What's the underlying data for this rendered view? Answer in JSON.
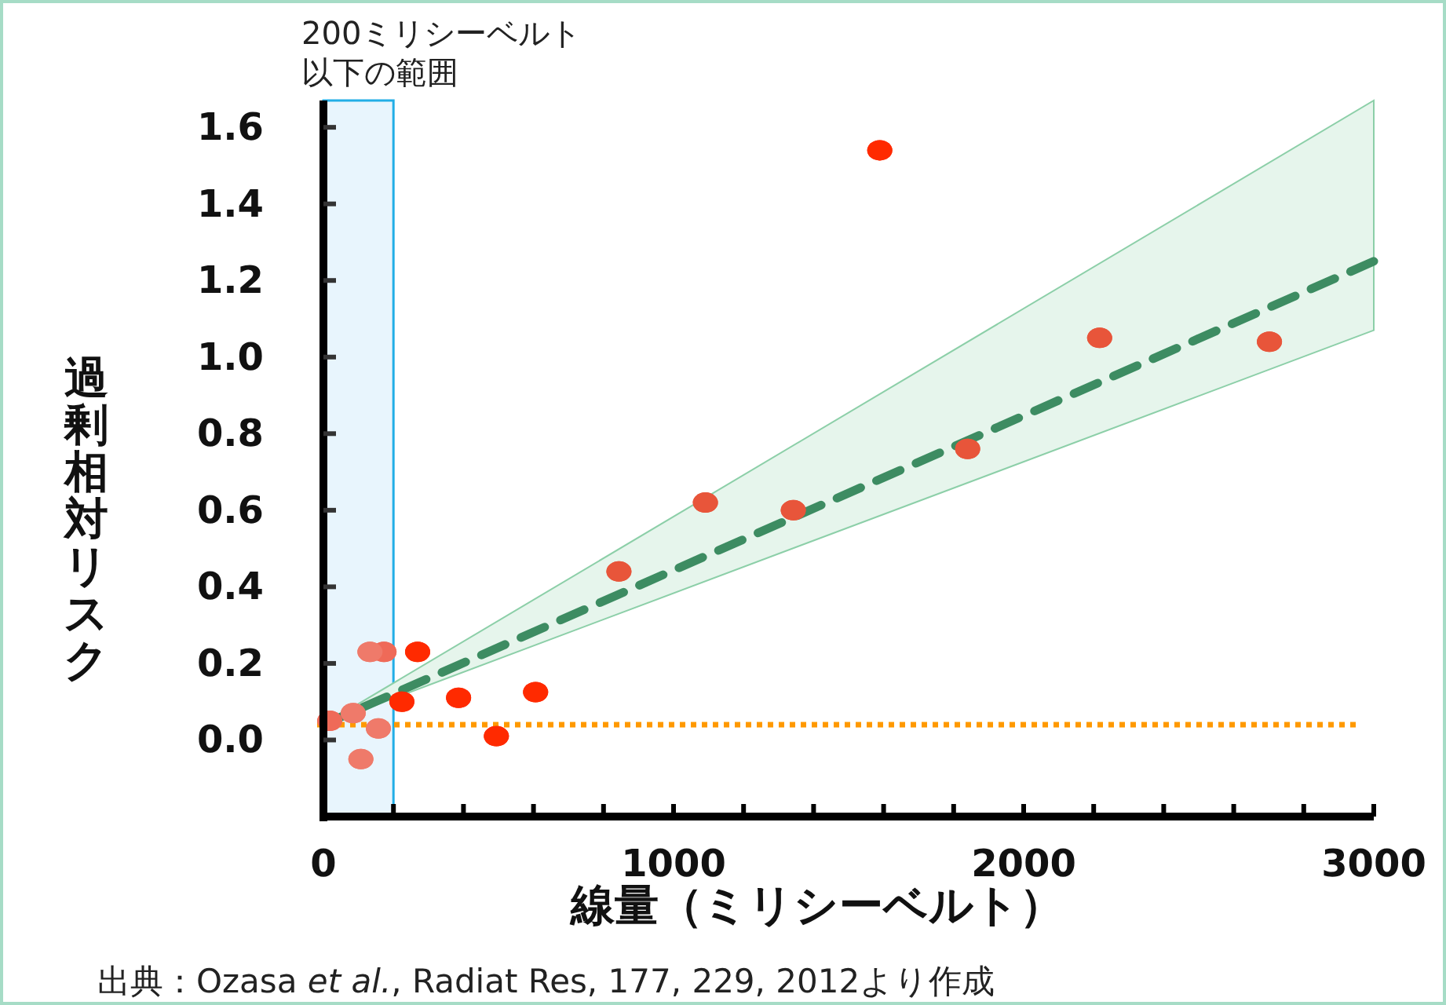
{
  "chart_data": {
    "type": "scatter",
    "xlabel": "線量（ミリシーベルト）",
    "ylabel": "過剰相対リスク",
    "annotations": [
      "出典：Ozasa *et al.*,  Radiat Res, 177, 229, 2012より作成"
    ],
    "xlim": [
      0,
      3000
    ],
    "ylim": [
      -0.2,
      1.67
    ],
    "xticks": [
      0,
      {
        "value": 200,
        "label": null
      },
      {
        "value": 400,
        "label": null
      },
      {
        "value": 600,
        "label": null
      },
      {
        "value": 800,
        "label": null
      },
      1000,
      {
        "value": 1200,
        "label": null
      },
      {
        "value": 1400,
        "label": null
      },
      {
        "value": 1600,
        "label": null
      },
      {
        "value": 1800,
        "label": null
      },
      2000,
      {
        "value": 2200,
        "label": null
      },
      {
        "value": 2400,
        "label": null
      },
      {
        "value": 2600,
        "label": null
      },
      {
        "value": 2800,
        "label": null
      },
      3000
    ],
    "yticks": [
      {
        "value": 0,
        "label": "0.0"
      },
      {
        "value": 0.2,
        "label": "0.2"
      },
      {
        "value": 0.4,
        "label": "0.4"
      },
      {
        "value": 0.6,
        "label": "0.6"
      },
      {
        "value": 0.8,
        "label": "0.8"
      },
      {
        "value": 1.0,
        "label": "1.0"
      },
      {
        "value": 1.2,
        "label": "1.2"
      },
      {
        "value": 1.4,
        "label": "1.4"
      },
      {
        "value": 1.6,
        "label": "1.6"
      }
    ],
    "grid": false,
    "series": [
      {
        "type": "line",
        "color": "#3d8c62",
        "line_style": "dashed",
        "marker": "none",
        "x": [
          0,
          3000
        ],
        "values": [
          0.04,
          1.25
        ],
        "lower": [
          0.04,
          1.07
        ],
        "upper": [
          0.04,
          1.67
        ]
      },
      {
        "marker": "circle",
        "x": [
          1589,
          2217,
          2702,
          1840,
          1091,
          1342,
          844,
          269,
          173,
          133,
          606,
          386,
          224,
          494,
          107,
          157,
          85,
          18
        ],
        "values": [
          1.54,
          1.05,
          1.04,
          0.76,
          0.62,
          0.6,
          0.44,
          0.23,
          0.23,
          0.23,
          0.125,
          0.11,
          0.1,
          0.01,
          -0.05,
          0.03,
          0.07,
          0.05
        ],
        "colors": [
          "#ff2a00",
          "#e8553a",
          "#e8553a",
          "#e8553a",
          "#e8553a",
          "#e8553a",
          "#e8553a",
          "#ff2a00",
          "#ef6a58",
          "#ef7a6a",
          "#ff2a00",
          "#ff2a00",
          "#ff2a00",
          "#ff2a00",
          "#ef7a6a",
          "#ef7a6a",
          "#ef7a6a",
          "#ef6a58"
        ]
      }
    ],
    "ref_lines": [
      {
        "axis": "y",
        "value": 0.04,
        "color": "#ff9900",
        "line_style": "dotted"
      }
    ],
    "bands": [
      {
        "axis": "x",
        "from": 0,
        "to": 200,
        "label": "200ミリシーベルト以下の範囲",
        "color": "#e8f5fd"
      }
    ]
  }
}
